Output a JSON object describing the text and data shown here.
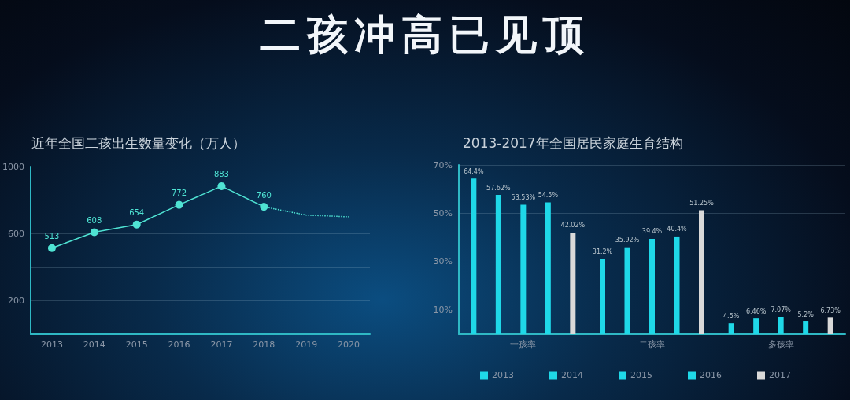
{
  "chart_data": [
    {
      "type": "other",
      "title": "二孩冲高已见顶"
    },
    {
      "type": "line",
      "title": "近年全国二孩出生数量变化（万人）",
      "categories": [
        "2013",
        "2014",
        "2015",
        "2016",
        "2017",
        "2018",
        "2019",
        "2020"
      ],
      "series": [
        {
          "color": "#4fe3d3",
          "values": [
            513,
            608,
            654,
            772,
            883,
            760,
            null,
            null
          ],
          "value_labels": [
            "513",
            "608",
            "654",
            "772",
            "883",
            "760",
            null,
            null
          ],
          "marker": "circle",
          "line_style": "solid"
        },
        {
          "color": "#4fe3d3",
          "values": [
            null,
            null,
            null,
            null,
            null,
            760,
            710,
            700
          ],
          "marker": "none",
          "line_style": "dotted"
        }
      ],
      "ylim": [
        0,
        1000
      ],
      "yticks": [
        {
          "value": 200,
          "label": "200"
        },
        {
          "value": 400,
          "label": null
        },
        {
          "value": 600,
          "label": "600"
        },
        {
          "value": 800,
          "label": null
        },
        {
          "value": 1000,
          "label": "1000"
        }
      ],
      "grid": "y",
      "legend": false
    },
    {
      "type": "bar",
      "title": "2013-2017年全国居民家庭生育结构",
      "categories": [
        "一孩率",
        "二孩率",
        "多孩率"
      ],
      "series": [
        {
          "name": "2013",
          "color": "#1fd8e8",
          "values": [
            64.4,
            31.2,
            4.5
          ],
          "value_labels": [
            "64.4%",
            "31.2%",
            "4.5%"
          ]
        },
        {
          "name": "2014",
          "color": "#1fd8e8",
          "values": [
            57.62,
            35.92,
            6.46
          ],
          "value_labels": [
            "57.62%",
            "35.92%",
            "6.46%"
          ]
        },
        {
          "name": "2015",
          "color": "#1fd8e8",
          "values": [
            53.53,
            39.4,
            7.07
          ],
          "value_labels": [
            "53.53%",
            "39.4%",
            "7.07%"
          ]
        },
        {
          "name": "2016",
          "color": "#1fd8e8",
          "values": [
            54.5,
            40.4,
            5.2
          ],
          "value_labels": [
            "54.5%",
            "40.4%",
            "5.2%"
          ]
        },
        {
          "name": "2017",
          "color": "#d9d9d9",
          "values": [
            42.02,
            51.25,
            6.73
          ],
          "value_labels": [
            "42.02%",
            "51.25%",
            "6.73%"
          ]
        }
      ],
      "ylim": [
        0,
        70
      ],
      "yticks": [
        {
          "value": 10,
          "label": "10%"
        },
        {
          "value": 30,
          "label": "30%"
        },
        {
          "value": 50,
          "label": "50%"
        },
        {
          "value": 70,
          "label": "70%"
        }
      ],
      "grid": "y",
      "legend": "bottom"
    }
  ]
}
